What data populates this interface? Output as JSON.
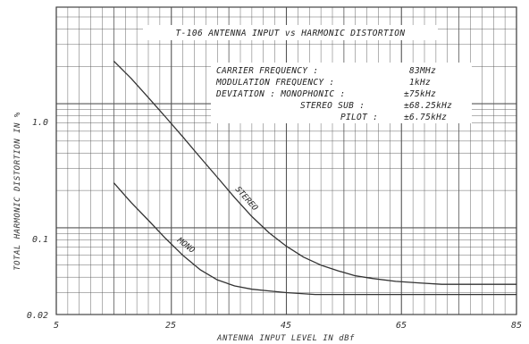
{
  "chart_data": {
    "type": "line",
    "title": "T-106 ANTENNA INPUT vs HARMONIC DISTORTION",
    "xlabel": "ANTENNA INPUT LEVEL IN dBf",
    "ylabel": "TOTAL HARMONIC DISTORTION IN %",
    "x_ticks": [
      5,
      25,
      45,
      65,
      85
    ],
    "x_tick_labels": [
      "5",
      "25",
      "45",
      "65",
      "85"
    ],
    "y_ticks": [
      0.02,
      0.1,
      1.0
    ],
    "y_tick_labels": [
      "0.02",
      "0.1",
      "1.0"
    ],
    "xlim": [
      5,
      85
    ],
    "ylim": [
      0.02,
      6
    ],
    "yscale": "log",
    "grid": true,
    "conditions": [
      {
        "label": "CARRIER FREQUENCY :",
        "value": "83MHz"
      },
      {
        "label": "MODULATION FREQUENCY :",
        "value": "1kHz"
      },
      {
        "label": "DEVIATION : MONOPHONIC :",
        "value": "±75kHz"
      },
      {
        "label": "STEREO SUB :",
        "value": "±68.25kHz"
      },
      {
        "label": "PILOT :",
        "value": "±6.75kHz"
      }
    ],
    "series": [
      {
        "name": "STEREO",
        "x": [
          15,
          18,
          21,
          24,
          27,
          30,
          33,
          36,
          39,
          42,
          45,
          48,
          51,
          54,
          57,
          60,
          64,
          68,
          72,
          76,
          80,
          85
        ],
        "y": [
          2.2,
          1.6,
          1.12,
          0.78,
          0.54,
          0.37,
          0.255,
          0.175,
          0.123,
          0.091,
          0.071,
          0.058,
          0.05,
          0.045,
          0.041,
          0.039,
          0.037,
          0.036,
          0.035,
          0.035,
          0.035,
          0.035
        ]
      },
      {
        "name": "MONO",
        "x": [
          15,
          18,
          21,
          24,
          27,
          30,
          33,
          36,
          39,
          42,
          45,
          50,
          55,
          60,
          65,
          70,
          75,
          80,
          85
        ],
        "y": [
          0.23,
          0.16,
          0.115,
          0.082,
          0.06,
          0.046,
          0.038,
          0.034,
          0.032,
          0.031,
          0.03,
          0.029,
          0.029,
          0.029,
          0.029,
          0.029,
          0.029,
          0.029,
          0.029
        ]
      }
    ]
  },
  "colors": {
    "grid": "#555555",
    "line": "#333333",
    "background": "#ffffff"
  }
}
